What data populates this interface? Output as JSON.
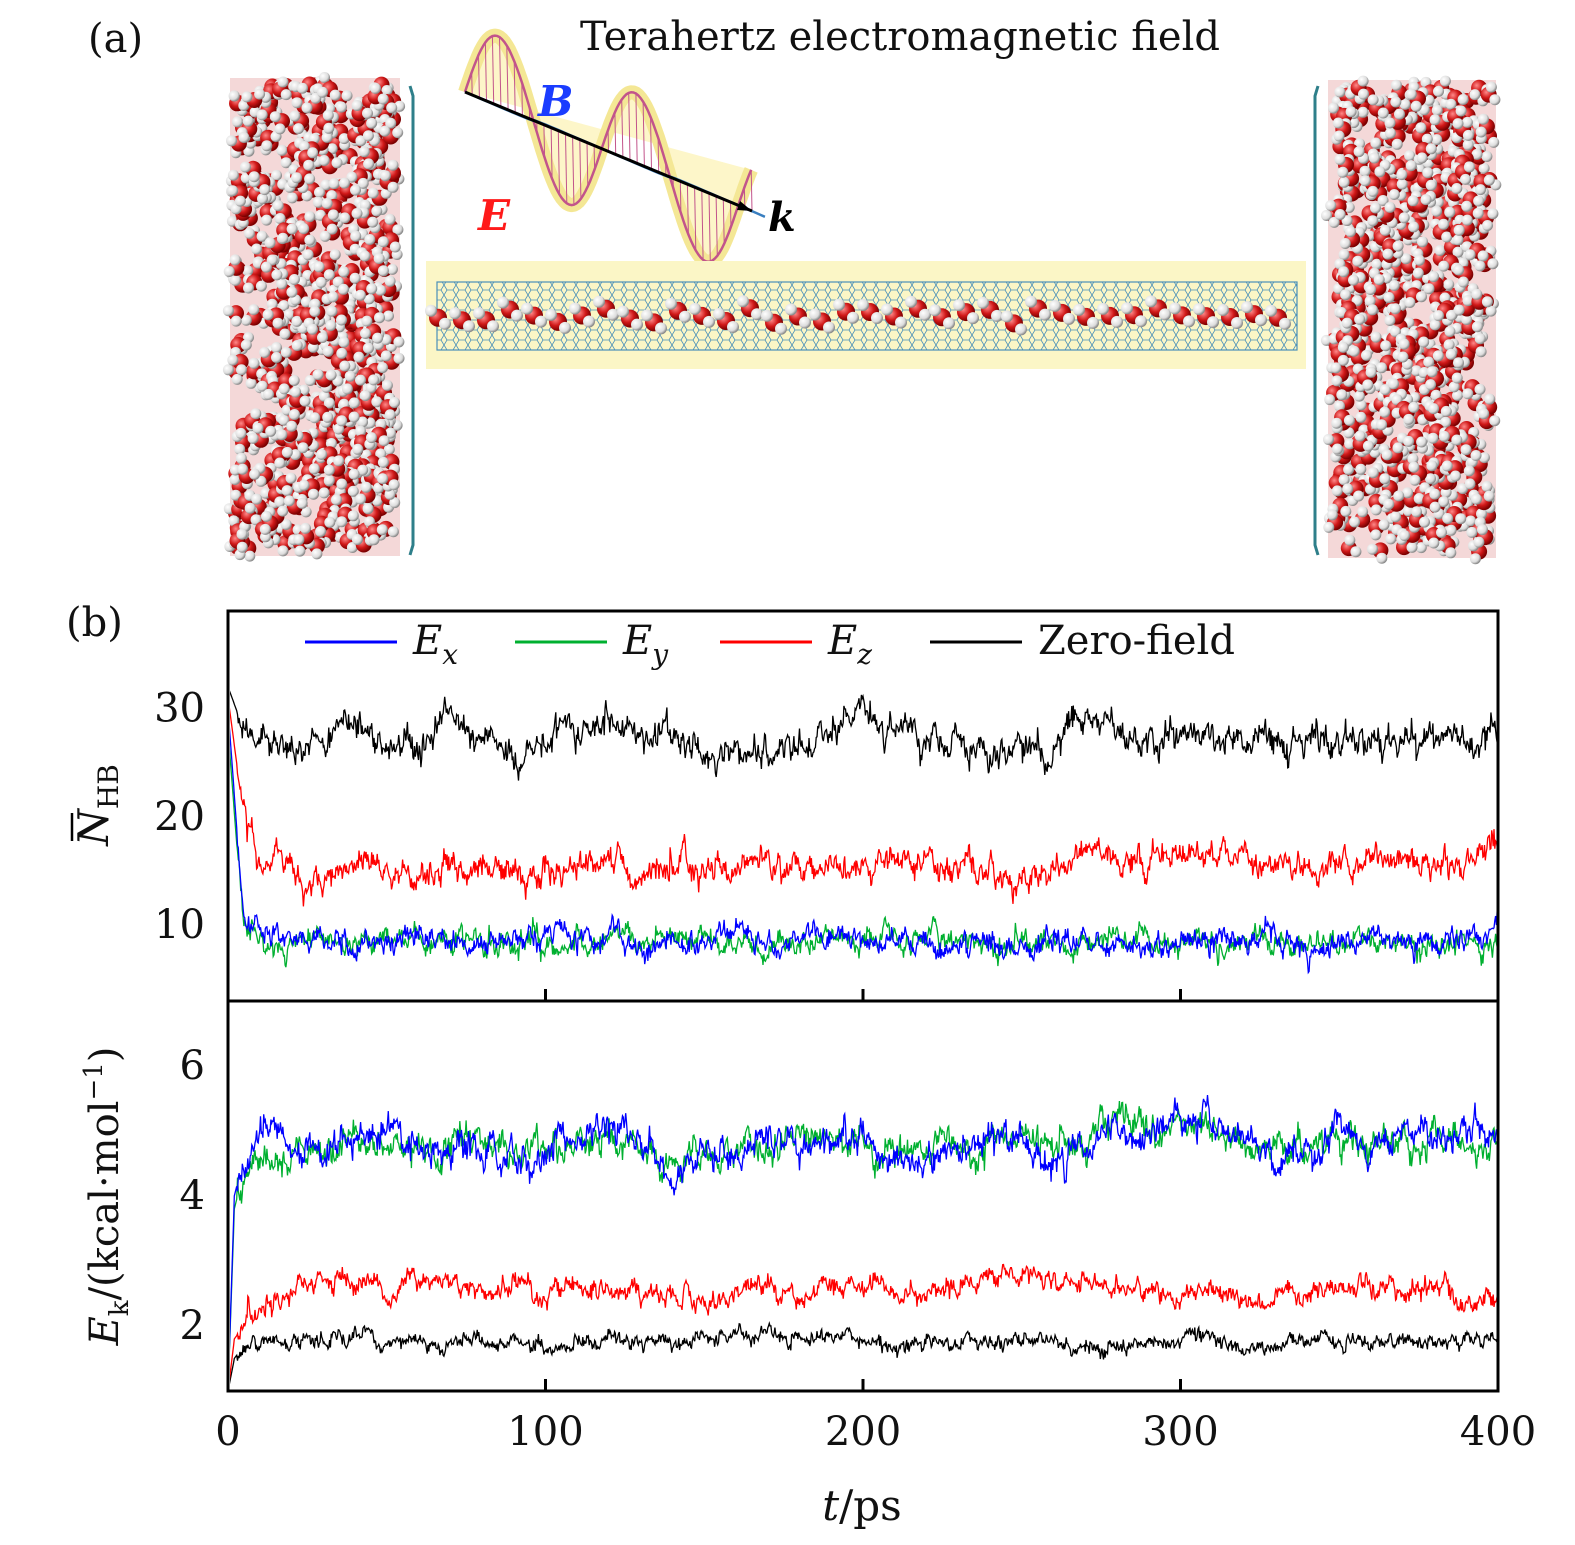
{
  "panel_a": {
    "label": "(a)",
    "title": "Terahertz electromagnetic field",
    "wave": {
      "b_label": "B",
      "e_label": "E",
      "k_label": "k"
    }
  },
  "panel_b": {
    "label": "(b)"
  },
  "legend": [
    {
      "sym": "E",
      "sub": "x",
      "color": "#0000ff"
    },
    {
      "sym": "E",
      "sub": "y",
      "color": "#00b030"
    },
    {
      "sym": "E",
      "sub": "z",
      "color": "#ff0000"
    },
    {
      "sym": "Zero-field",
      "sub": "",
      "color": "#000000"
    }
  ],
  "xaxis": {
    "label_var": "t",
    "label_unit": "/ps",
    "ticks": [
      "0",
      "100",
      "200",
      "300",
      "400"
    ],
    "range": [
      0,
      400
    ]
  },
  "top_axis": {
    "label_sym": "N",
    "label_sub": "HB",
    "ticks": [
      "10",
      "20",
      "30"
    ],
    "range": [
      3,
      39
    ]
  },
  "bottom_axis": {
    "label_sym": "E",
    "label_sub": "k",
    "label_rest": "/(kcal·mol",
    "label_exp": "−1",
    "label_close": ")",
    "ticks": [
      "2",
      "4",
      "6"
    ],
    "range": [
      1,
      7
    ]
  },
  "chart_data": [
    {
      "type": "line",
      "panel": "top",
      "xlabel": "t/ps",
      "ylabel": "N_HB",
      "xlim": [
        0,
        400
      ],
      "ylim": [
        3,
        39
      ],
      "x": [
        0,
        5,
        10,
        20,
        30,
        40,
        50,
        60,
        70,
        80,
        90,
        100,
        110,
        120,
        130,
        140,
        150,
        160,
        170,
        180,
        190,
        200,
        210,
        220,
        230,
        240,
        250,
        260,
        270,
        280,
        290,
        300,
        310,
        320,
        330,
        340,
        350,
        360,
        370,
        380,
        390,
        400
      ],
      "series": [
        {
          "name": "Ex",
          "color": "#0000ff",
          "noise": 1.8,
          "values": [
            30,
            10,
            9,
            9,
            8.5,
            9,
            8.5,
            9,
            9,
            8.5,
            8.5,
            9,
            8.5,
            9,
            8.5,
            8.5,
            8.5,
            9,
            8.5,
            8.5,
            9,
            8.5,
            9,
            8.5,
            8.5,
            8.5,
            8,
            8.5,
            8.5,
            8,
            8.5,
            8.5,
            8.5,
            8.5,
            8.5,
            8.5,
            8.5,
            8.5,
            8.5,
            8.5,
            8.5,
            9
          ]
        },
        {
          "name": "Ey",
          "color": "#00b030",
          "noise": 1.8,
          "values": [
            28,
            9,
            8.5,
            8.5,
            8.5,
            8.5,
            8.5,
            8.5,
            9,
            8.5,
            8.5,
            8.5,
            8.5,
            8.5,
            8.5,
            9,
            8.5,
            8.5,
            8.5,
            8.5,
            9,
            9,
            9,
            9,
            8.5,
            8.5,
            8.5,
            8.5,
            8.5,
            8.5,
            8.5,
            8.5,
            8.5,
            8.5,
            8.5,
            8.5,
            8.5,
            8.5,
            8.5,
            8.5,
            8.5,
            8.5
          ]
        },
        {
          "name": "Ez",
          "color": "#ff0000",
          "noise": 2.2,
          "values": [
            31,
            20,
            16,
            15,
            14.5,
            15,
            16,
            14,
            15.5,
            15.5,
            15,
            15,
            15.5,
            15.5,
            15,
            16,
            15,
            15.5,
            15.5,
            15.5,
            15.5,
            15,
            16,
            16,
            15,
            15,
            14,
            15,
            16.5,
            16,
            16,
            17,
            16.5,
            16.5,
            16,
            15.5,
            15.5,
            16,
            16,
            15.5,
            16,
            18
          ]
        },
        {
          "name": "Zero-field",
          "color": "#000000",
          "noise": 2.4,
          "values": [
            32,
            28,
            26.5,
            27,
            27.5,
            28,
            27,
            26,
            28.5,
            28,
            25.5,
            27.5,
            28.5,
            29,
            27.5,
            27,
            26,
            26.5,
            25.5,
            26,
            28,
            30,
            28,
            27.5,
            27,
            26,
            27,
            26.5,
            29,
            28,
            27.5,
            27.5,
            27,
            27.5,
            27,
            27,
            27,
            26.5,
            27,
            27,
            26.5,
            27.5
          ]
        }
      ]
    },
    {
      "type": "line",
      "panel": "bottom",
      "xlabel": "t/ps",
      "ylabel": "E_k/(kcal·mol^-1)",
      "xlim": [
        0,
        400
      ],
      "ylim": [
        1,
        7
      ],
      "x": [
        0,
        2,
        5,
        10,
        20,
        30,
        40,
        50,
        60,
        70,
        80,
        90,
        100,
        110,
        120,
        130,
        140,
        150,
        160,
        170,
        180,
        190,
        200,
        210,
        220,
        230,
        240,
        250,
        260,
        270,
        280,
        290,
        300,
        310,
        320,
        330,
        340,
        350,
        360,
        370,
        380,
        390,
        400
      ],
      "series": [
        {
          "name": "Ex",
          "color": "#0000ff",
          "noise": 0.4,
          "values": [
            1.0,
            4.0,
            4.6,
            4.9,
            4.9,
            4.8,
            5.0,
            5.1,
            4.7,
            4.8,
            4.7,
            4.6,
            4.7,
            4.9,
            5.1,
            4.8,
            4.3,
            4.7,
            4.5,
            4.8,
            4.9,
            4.8,
            4.9,
            4.5,
            4.6,
            4.7,
            4.8,
            4.9,
            4.6,
            4.8,
            5.0,
            5.0,
            5.2,
            5.0,
            4.9,
            4.7,
            4.8,
            5.0,
            4.7,
            5.0,
            4.9,
            5.1,
            4.8
          ]
        },
        {
          "name": "Ey",
          "color": "#00b030",
          "noise": 0.4,
          "values": [
            1.0,
            3.8,
            4.4,
            4.6,
            4.7,
            4.7,
            4.8,
            4.9,
            4.8,
            4.7,
            4.8,
            4.7,
            4.7,
            4.8,
            4.9,
            4.7,
            4.4,
            4.6,
            4.7,
            4.7,
            4.9,
            4.8,
            4.8,
            4.6,
            4.7,
            4.8,
            4.7,
            5.0,
            4.8,
            4.9,
            5.2,
            5.0,
            5.0,
            4.9,
            4.8,
            4.8,
            4.7,
            4.9,
            4.8,
            4.8,
            4.9,
            4.8,
            4.8
          ]
        },
        {
          "name": "Ez",
          "color": "#ff0000",
          "noise": 0.28,
          "values": [
            1.0,
            1.8,
            2.0,
            2.2,
            2.5,
            2.8,
            2.6,
            2.4,
            2.8,
            2.7,
            2.5,
            2.6,
            2.5,
            2.6,
            2.6,
            2.5,
            2.5,
            2.4,
            2.6,
            2.6,
            2.5,
            2.6,
            2.7,
            2.5,
            2.4,
            2.6,
            2.8,
            2.9,
            2.7,
            2.6,
            2.6,
            2.6,
            2.5,
            2.6,
            2.3,
            2.4,
            2.5,
            2.6,
            2.6,
            2.5,
            2.7,
            2.4,
            2.3
          ]
        },
        {
          "name": "Zero-field",
          "color": "#000000",
          "noise": 0.2,
          "values": [
            1.0,
            1.5,
            1.7,
            1.8,
            1.8,
            1.8,
            1.9,
            1.7,
            1.8,
            1.7,
            1.8,
            1.8,
            1.7,
            1.8,
            1.8,
            1.8,
            1.7,
            1.8,
            1.8,
            1.9,
            1.8,
            1.8,
            1.8,
            1.7,
            1.8,
            1.7,
            1.8,
            1.8,
            1.8,
            1.7,
            1.7,
            1.7,
            1.8,
            1.8,
            1.7,
            1.7,
            1.8,
            1.7,
            1.8,
            1.8,
            1.7,
            1.8,
            1.8
          ]
        }
      ]
    }
  ]
}
